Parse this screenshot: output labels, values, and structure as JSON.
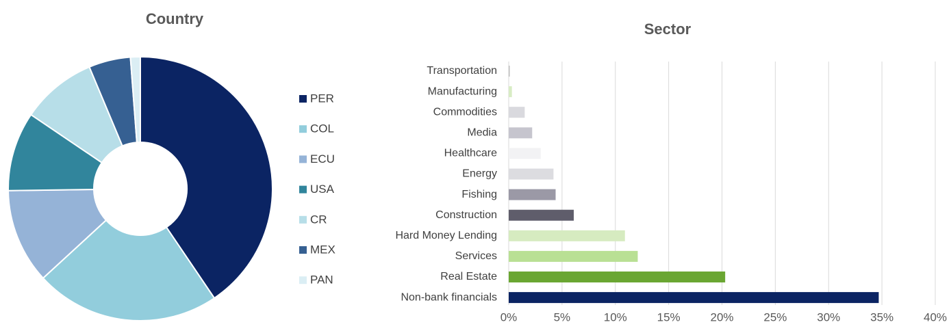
{
  "chart_data": [
    {
      "type": "pie",
      "title": "Country",
      "categories": [
        "PER",
        "COL",
        "ECU",
        "USA",
        "CR",
        "MEX",
        "PAN"
      ],
      "values": [
        40.5,
        22.6,
        11.6,
        9.7,
        9.2,
        5.1,
        1.2
      ],
      "colors": [
        "#0b2463",
        "#92cddc",
        "#95b3d7",
        "#31859c",
        "#b7dee8",
        "#366092",
        "#dbeef4"
      ]
    },
    {
      "type": "barh",
      "title": "Sector",
      "categories": [
        "Transportation",
        "Manufacturing",
        "Commodities",
        "Media",
        "Healthcare",
        "Energy",
        "Fishing",
        "Construction",
        "Hard Money Lending",
        "Services",
        "Real Estate",
        "Non-bank financials"
      ],
      "values": [
        0.1,
        0.3,
        1.5,
        2.2,
        3.0,
        4.2,
        4.4,
        6.1,
        10.9,
        12.1,
        20.3,
        34.7
      ],
      "colors": [
        "#bfbfbf",
        "#d8ecc4",
        "#d9d9de",
        "#c6c5ce",
        "#f2f2f4",
        "#dcdce0",
        "#9b99a6",
        "#5f5d6b",
        "#d6ebc0",
        "#b9e094",
        "#6aa632",
        "#0b2463"
      ],
      "xlim": [
        0,
        40
      ],
      "xticks": [
        {
          "value": 0,
          "label": "0%"
        },
        {
          "value": 5,
          "label": "5%"
        },
        {
          "value": 10,
          "label": "10%"
        },
        {
          "value": 15,
          "label": "15%"
        },
        {
          "value": 20,
          "label": "20%"
        },
        {
          "value": 25,
          "label": "25%"
        },
        {
          "value": 30,
          "label": "30%"
        },
        {
          "value": 35,
          "label": "35%"
        },
        {
          "value": 40,
          "label": "40%"
        }
      ],
      "grid": true
    }
  ]
}
